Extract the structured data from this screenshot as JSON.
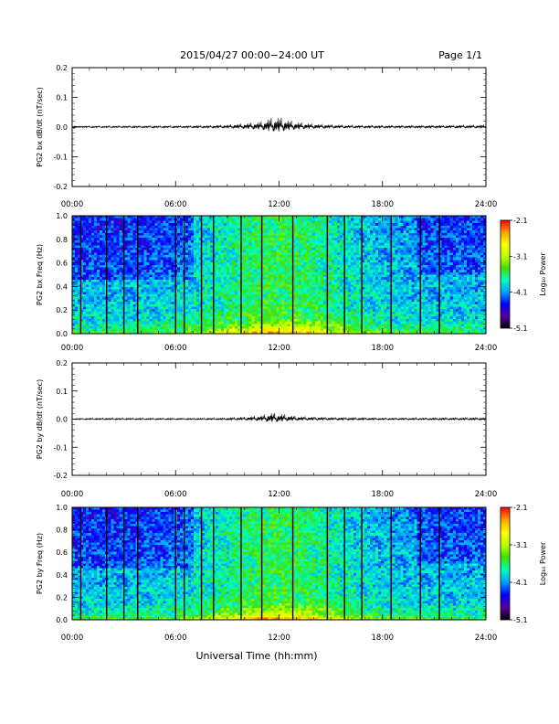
{
  "header": {
    "title": "2015/04/27  00:00−24:00 UT",
    "page": "Page 1/1"
  },
  "footer": {
    "xlabel": "Universal Time (hh:mm)"
  },
  "colorbar": {
    "label": "Log₁₀ Power",
    "ticks": [
      "-2.1",
      "-3.1",
      "-4.1",
      "-5.1"
    ],
    "range": [
      -5.1,
      -2.1
    ],
    "colors": [
      "#000000",
      "#5a00a0",
      "#0000ff",
      "#00a0ff",
      "#00ffc0",
      "#40e000",
      "#c0ff00",
      "#ffff00",
      "#ffa000",
      "#ff0000"
    ]
  },
  "chart_data": [
    {
      "type": "line",
      "ylabel": "PG2 bx dB/dt (nT/sec)",
      "xlim": [
        "00:00",
        "24:00"
      ],
      "ylim": [
        -0.2,
        0.2
      ],
      "xticks": [
        "00:00",
        "06:00",
        "12:00",
        "18:00",
        "24:00"
      ],
      "yticks": [
        "0.2",
        "0.1",
        "0.0",
        "-0.1",
        "-0.2"
      ],
      "envelope": {
        "hours": [
          0,
          2,
          4,
          6,
          8,
          9,
          10,
          11,
          11.5,
          12,
          12.5,
          13,
          14,
          15,
          16,
          18,
          20,
          22,
          24
        ],
        "amplitude": [
          0.005,
          0.005,
          0.006,
          0.006,
          0.008,
          0.012,
          0.018,
          0.028,
          0.045,
          0.05,
          0.035,
          0.025,
          0.016,
          0.013,
          0.01,
          0.008,
          0.008,
          0.01,
          0.012
        ]
      }
    },
    {
      "type": "heatmap",
      "ylabel": "PG2 bx Freq (Hz)",
      "xlim": [
        "00:00",
        "24:00"
      ],
      "ylim": [
        0.0,
        1.0
      ],
      "xticks": [
        "00:00",
        "06:00",
        "12:00",
        "18:00",
        "24:00"
      ],
      "yticks": [
        "1.0",
        "0.8",
        "0.6",
        "0.4",
        "0.2",
        "0.0"
      ],
      "gap_hours": [
        0.5,
        2.0,
        3.0,
        3.8,
        6.0,
        6.5,
        7.5,
        8.2,
        9.8,
        11.0,
        12.8,
        14.8,
        15.8,
        16.8,
        18.5,
        20.2,
        21.3
      ]
    },
    {
      "type": "line",
      "ylabel": "PG2 by dB/dt (nT/sec)",
      "xlim": [
        "00:00",
        "24:00"
      ],
      "ylim": [
        -0.2,
        0.2
      ],
      "xticks": [
        "00:00",
        "06:00",
        "12:00",
        "18:00",
        "24:00"
      ],
      "yticks": [
        "0.2",
        "0.1",
        "0.0",
        "-0.1",
        "-0.2"
      ],
      "envelope": {
        "hours": [
          0,
          2,
          4,
          6,
          8,
          9,
          10,
          11,
          11.5,
          12,
          12.5,
          13,
          14,
          15,
          16,
          18,
          20,
          22,
          24
        ],
        "amplitude": [
          0.004,
          0.006,
          0.005,
          0.005,
          0.006,
          0.008,
          0.012,
          0.02,
          0.035,
          0.03,
          0.022,
          0.016,
          0.012,
          0.01,
          0.009,
          0.007,
          0.007,
          0.008,
          0.009
        ]
      }
    },
    {
      "type": "heatmap",
      "ylabel": "PG2 by Freq (Hz)",
      "xlim": [
        "00:00",
        "24:00"
      ],
      "ylim": [
        0.0,
        1.0
      ],
      "xticks": [
        "00:00",
        "06:00",
        "12:00",
        "18:00",
        "24:00"
      ],
      "yticks": [
        "1.0",
        "0.8",
        "0.6",
        "0.4",
        "0.2",
        "0.0"
      ],
      "gap_hours": [
        0.5,
        2.0,
        3.0,
        3.8,
        6.0,
        6.5,
        7.5,
        8.2,
        9.8,
        11.0,
        12.8,
        14.8,
        15.8,
        16.8,
        18.5,
        20.2,
        21.3
      ]
    }
  ]
}
